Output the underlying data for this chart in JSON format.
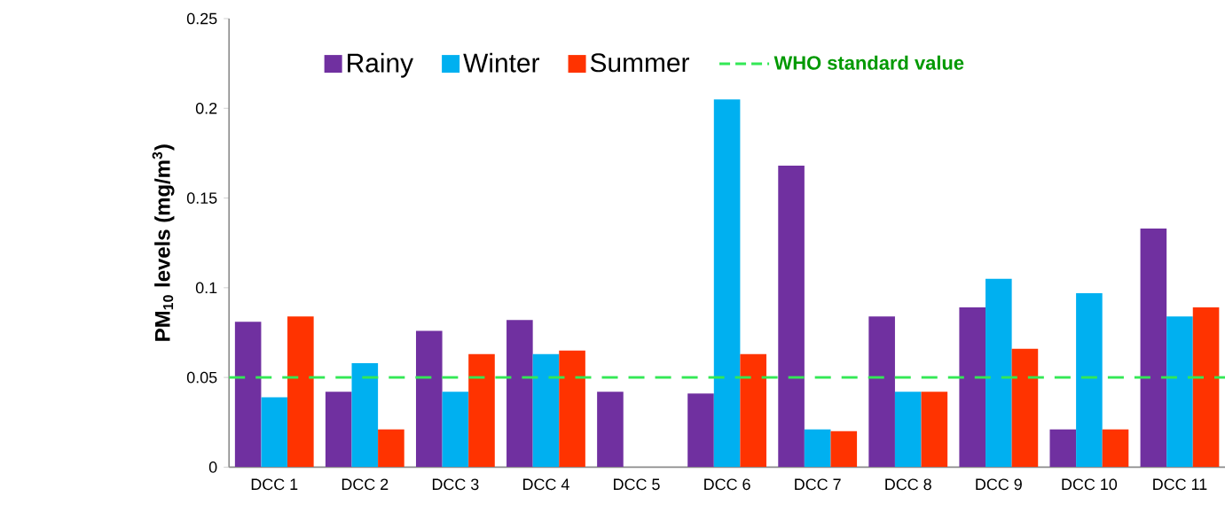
{
  "chart_data": {
    "type": "bar",
    "ylabel": "PM$_{10}$ levels (mg/m$^{3}$)",
    "categories": [
      "DCC 1",
      "DCC 2",
      "DCC 3",
      "DCC 4",
      "DCC 5",
      "DCC 6",
      "DCC 7",
      "DCC 8",
      "DCC 9",
      "DCC 10",
      "DCC 11"
    ],
    "series": [
      {
        "name": "Rainy",
        "color": "#7030a0",
        "values": [
          0.081,
          0.042,
          0.076,
          0.082,
          0.042,
          0.041,
          0.168,
          0.084,
          0.089,
          0.021,
          0.133
        ]
      },
      {
        "name": "Winter",
        "color": "#00b0f0",
        "values": [
          0.039,
          0.058,
          0.042,
          0.063,
          null,
          0.205,
          0.021,
          0.042,
          0.105,
          0.097,
          0.084
        ]
      },
      {
        "name": "Summer",
        "color": "#ff3300",
        "values": [
          0.084,
          0.021,
          0.063,
          0.065,
          null,
          0.063,
          0.02,
          0.042,
          0.066,
          0.021,
          0.089
        ]
      }
    ],
    "ref_lines": [
      {
        "axis": "y",
        "value": 0.05,
        "label": "WHO standard value",
        "color": "#33e855",
        "line_style": "dashed"
      }
    ],
    "ylim": [
      0,
      0.25
    ],
    "yticks": [
      0,
      0.05,
      0.1,
      0.15,
      0.2,
      0.25
    ],
    "grid": false,
    "legend": "top"
  }
}
